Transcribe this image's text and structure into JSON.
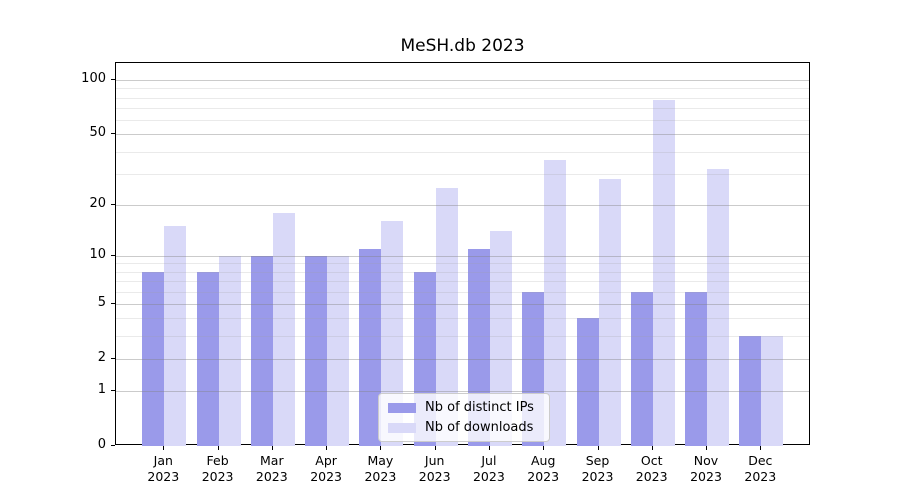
{
  "chart_data": {
    "type": "bar",
    "title": "MeSH.db 2023",
    "categories": [
      "Jan 2023",
      "Feb 2023",
      "Mar 2023",
      "Apr 2023",
      "May 2023",
      "Jun 2023",
      "Jul 2023",
      "Aug 2023",
      "Sep 2023",
      "Oct 2023",
      "Nov 2023",
      "Dec 2023"
    ],
    "series": [
      {
        "name": "Nb of distinct IPs",
        "color": "#9a9aea",
        "values": [
          8,
          8,
          10,
          10,
          11,
          8,
          11,
          6,
          4,
          6,
          6,
          3
        ]
      },
      {
        "name": "Nb of downloads",
        "color": "#d9d9f8",
        "values": [
          15,
          10,
          18,
          10,
          16,
          25,
          14,
          36,
          28,
          78,
          32,
          3
        ]
      }
    ],
    "yscale": "log10(1+v)",
    "ylim": [
      0,
      124
    ],
    "y_tick_values": [
      0,
      1,
      2,
      5,
      10,
      20,
      50,
      100
    ],
    "y_tick_labels": [
      "0",
      "1",
      "2",
      "5",
      "10",
      "20",
      "50",
      "100"
    ],
    "y_minor_gridlines": [
      3,
      4,
      6,
      7,
      8,
      9,
      30,
      40,
      60,
      70,
      80,
      90
    ],
    "grid": "on",
    "legend_position": "lower center"
  },
  "colors": {
    "background": "#ffffff",
    "spine": "#000000",
    "major_grid": "#c9c9c9",
    "minor_grid": "#ececec",
    "legend_border": "#cccccc"
  }
}
